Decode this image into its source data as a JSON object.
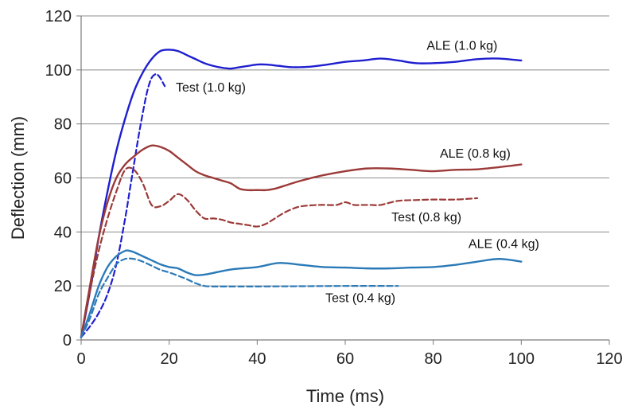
{
  "chart_data": {
    "type": "line",
    "xlabel": "Time (ms)",
    "ylabel": "Deflection (mm)",
    "xlim": [
      0,
      120
    ],
    "ylim": [
      0,
      120
    ],
    "xticks": [
      0,
      20,
      40,
      60,
      80,
      100,
      120
    ],
    "yticks": [
      0,
      20,
      40,
      60,
      80,
      100,
      120
    ],
    "grid": "horizontal",
    "series": [
      {
        "name": "ALE (1.0 kg)",
        "color": "#1f1fd0",
        "dash": "solid",
        "x": [
          0,
          2,
          4,
          6,
          8,
          10,
          12,
          14,
          16,
          18,
          20,
          22,
          24,
          26,
          28,
          30,
          32,
          34,
          36,
          38,
          40,
          42,
          45,
          48,
          52,
          56,
          60,
          64,
          68,
          72,
          76,
          80,
          85,
          90,
          95,
          100
        ],
        "y": [
          1,
          18,
          38,
          55,
          70,
          82,
          92,
          99,
          104,
          107,
          107.5,
          107,
          105.5,
          104,
          102.5,
          101.5,
          100.8,
          100.5,
          101,
          101.5,
          102,
          102,
          101.5,
          101,
          101.2,
          102,
          103,
          103.5,
          104.2,
          103.5,
          102.5,
          102.5,
          103,
          104,
          104.2,
          103.5
        ]
      },
      {
        "name": "Test (1.0 kg)",
        "color": "#1f1fd0",
        "dash": "dashed",
        "x": [
          0,
          2,
          4,
          6,
          8,
          10,
          11,
          12,
          13,
          14,
          15,
          16,
          17,
          17.5,
          18,
          18.5,
          19
        ],
        "y": [
          1,
          5,
          10,
          17,
          28,
          45,
          55,
          65,
          75,
          84,
          92,
          97,
          98.5,
          98,
          97,
          95.5,
          94
        ]
      },
      {
        "name": "ALE (0.8 kg)",
        "color": "#9b3a38",
        "dash": "solid",
        "x": [
          0,
          2,
          4,
          6,
          8,
          10,
          12,
          14,
          16,
          18,
          20,
          22,
          24,
          26,
          28,
          30,
          32,
          34,
          36,
          38,
          40,
          42,
          44,
          46,
          50,
          55,
          60,
          65,
          70,
          75,
          80,
          85,
          90,
          95,
          100
        ],
        "y": [
          1,
          20,
          38,
          51,
          60,
          65,
          68,
          70.5,
          72,
          71.5,
          70,
          67.5,
          65,
          62.5,
          61,
          60,
          59,
          58,
          56,
          55.5,
          55.5,
          55.5,
          56,
          57,
          59,
          61,
          62.5,
          63.5,
          63.5,
          63,
          62.5,
          63,
          63.2,
          64,
          65
        ]
      },
      {
        "name": "Test (0.8 kg)",
        "color": "#9b3a38",
        "dash": "dashed",
        "x": [
          0,
          2,
          4,
          6,
          8,
          10,
          12,
          14,
          16,
          18,
          20,
          22,
          24,
          26,
          28,
          30,
          32,
          34,
          36,
          38,
          40,
          42,
          44,
          46,
          48,
          50,
          54,
          58,
          60,
          62,
          64,
          66,
          68,
          72,
          76,
          80,
          85,
          90
        ],
        "y": [
          1,
          18,
          33,
          45,
          55,
          63,
          63,
          58,
          50,
          49.5,
          51.5,
          54,
          52,
          48,
          45,
          45,
          44.5,
          43.5,
          43,
          42.5,
          42,
          43,
          45,
          47,
          48.5,
          49.5,
          50,
          50,
          51,
          50,
          50,
          50,
          50,
          51.5,
          51.8,
          52,
          52,
          52.5
        ]
      },
      {
        "name": "ALE (0.4 kg)",
        "color": "#2b7ab8",
        "dash": "solid",
        "x": [
          0,
          2,
          4,
          6,
          8,
          10,
          11,
          12,
          14,
          16,
          18,
          20,
          22,
          24,
          26,
          28,
          30,
          32,
          35,
          40,
          45,
          50,
          55,
          60,
          65,
          70,
          75,
          80,
          85,
          90,
          95,
          100
        ],
        "y": [
          1,
          10,
          20,
          27,
          31,
          33,
          33,
          32.5,
          31,
          29.5,
          28,
          27,
          26.5,
          25,
          24,
          24.2,
          24.8,
          25.5,
          26.3,
          27,
          28.5,
          27.8,
          27,
          26.8,
          26.5,
          26.5,
          26.8,
          27,
          27.8,
          29,
          30,
          29
        ]
      },
      {
        "name": "Test (0.4 kg)",
        "color": "#2b7ab8",
        "dash": "dashed",
        "x": [
          0,
          2,
          4,
          6,
          8,
          10,
          12,
          14,
          16,
          18,
          20,
          22,
          24,
          26,
          28,
          30,
          35,
          40,
          50,
          60,
          72
        ],
        "y": [
          1,
          8,
          17,
          23,
          28,
          30,
          30,
          29,
          27.5,
          26,
          25,
          23.8,
          22.5,
          21,
          20,
          19.8,
          19.8,
          19.8,
          19.9,
          20,
          20
        ]
      }
    ],
    "annotations": [
      {
        "text": "ALE (1.0 kg)",
        "x": 78.5,
        "y": 107.5,
        "color": "#111111"
      },
      {
        "text": "Test (1.0 kg)",
        "x": 21.5,
        "y": 92.0,
        "color": "#111111"
      },
      {
        "text": "ALE (0.8 kg)",
        "x": 81.5,
        "y": 67.5,
        "color": "#111111"
      },
      {
        "text": "Test (0.8 kg)",
        "x": 70.5,
        "y": 44.0,
        "color": "#111111"
      },
      {
        "text": "ALE (0.4 kg)",
        "x": 88.0,
        "y": 34.0,
        "color": "#111111"
      },
      {
        "text": "Test (0.4 kg)",
        "x": 55.5,
        "y": 14.0,
        "color": "#111111"
      }
    ]
  }
}
